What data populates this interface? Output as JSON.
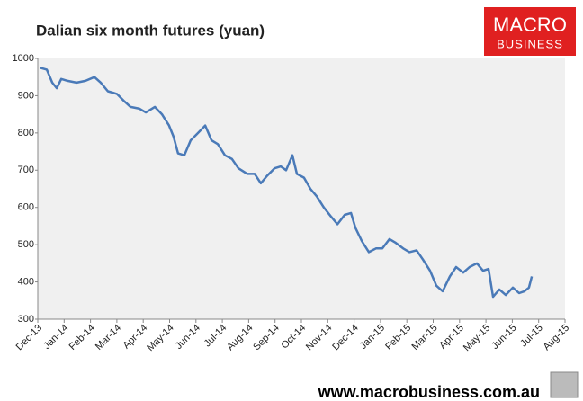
{
  "chart_data": {
    "type": "line",
    "title": "Dalian six month futures (yuan)",
    "x": [
      0.1,
      0.34,
      0.55,
      0.72,
      0.89,
      1.13,
      1.47,
      1.81,
      2.15,
      2.39,
      2.66,
      3.0,
      3.28,
      3.52,
      3.86,
      4.1,
      4.44,
      4.71,
      4.98,
      5.15,
      5.32,
      5.56,
      5.8,
      6.08,
      6.35,
      6.59,
      6.83,
      7.1,
      7.37,
      7.61,
      7.95,
      8.23,
      8.46,
      8.7,
      8.98,
      9.22,
      9.42,
      9.66,
      9.83,
      10.1,
      10.34,
      10.58,
      10.85,
      11.13,
      11.37,
      11.64,
      11.88,
      12.05,
      12.29,
      12.56,
      12.83,
      13.07,
      13.34,
      13.58,
      13.86,
      14.1,
      14.37,
      14.61,
      14.88,
      15.12,
      15.36,
      15.63,
      15.87,
      16.14,
      16.38,
      16.66,
      16.89,
      17.1,
      17.27,
      17.51,
      17.75,
      18.02,
      18.26,
      18.46,
      18.63,
      18.74
    ],
    "series": [
      {
        "color": "#4a7ab8",
        "values": [
          975,
          970,
          935,
          920,
          945,
          940,
          935,
          940,
          950,
          935,
          912,
          905,
          885,
          870,
          865,
          855,
          870,
          850,
          820,
          790,
          745,
          740,
          780,
          800,
          820,
          780,
          770,
          740,
          730,
          705,
          690,
          690,
          665,
          685,
          705,
          710,
          700,
          740,
          690,
          680,
          650,
          630,
          600,
          575,
          555,
          580,
          585,
          545,
          510,
          480,
          490,
          490,
          515,
          505,
          490,
          480,
          485,
          460,
          430,
          390,
          375,
          415,
          440,
          425,
          440,
          450,
          430,
          435,
          360,
          380,
          365,
          385,
          370,
          375,
          385,
          415
        ]
      }
    ],
    "xlim": [
      0,
      20
    ],
    "xticks": [
      {
        "value": 0,
        "label": "Dec-13"
      },
      {
        "value": 1,
        "label": "Jan-14"
      },
      {
        "value": 2,
        "label": "Feb-14"
      },
      {
        "value": 3,
        "label": "Mar-14"
      },
      {
        "value": 4,
        "label": "Apr-14"
      },
      {
        "value": 5,
        "label": "May-14"
      },
      {
        "value": 6,
        "label": "Jun-14"
      },
      {
        "value": 7,
        "label": "Jul-14"
      },
      {
        "value": 8,
        "label": "Aug-14"
      },
      {
        "value": 9,
        "label": "Sep-14"
      },
      {
        "value": 10,
        "label": "Oct-14"
      },
      {
        "value": 11,
        "label": "Nov-14"
      },
      {
        "value": 12,
        "label": "Dec-14"
      },
      {
        "value": 13,
        "label": "Jan-15"
      },
      {
        "value": 14,
        "label": "Feb-15"
      },
      {
        "value": 15,
        "label": "Mar-15"
      },
      {
        "value": 16,
        "label": "Apr-15"
      },
      {
        "value": 17,
        "label": "May-15"
      },
      {
        "value": 18,
        "label": "Jun-15"
      },
      {
        "value": 19,
        "label": "Jul-15"
      },
      {
        "value": 20,
        "label": "Aug-15"
      }
    ],
    "ylim": [
      300,
      1000
    ],
    "yticks": [
      300,
      400,
      500,
      600,
      700,
      800,
      900,
      1000
    ]
  },
  "logo": {
    "line1": "MACRO",
    "line2": "BUSINESS"
  },
  "footer": "www.macrobusiness.com.au"
}
